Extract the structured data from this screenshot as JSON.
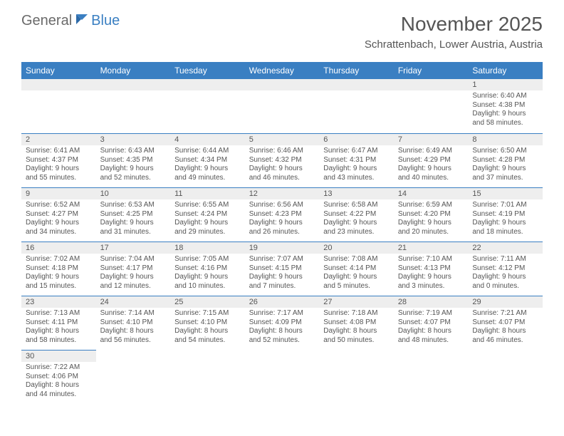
{
  "brand": {
    "part1": "General",
    "part2": "Blue"
  },
  "title": "November 2025",
  "location": "Schrattenbach, Lower Austria, Austria",
  "colors": {
    "header_bg": "#3a7fc2",
    "header_text": "#ffffff",
    "daynum_bg": "#eeeeee",
    "body_text": "#555555",
    "separator": "#3a7fc2",
    "page_bg": "#ffffff"
  },
  "typography": {
    "title_fontsize": 28,
    "location_fontsize": 15,
    "dayheader_fontsize": 12,
    "cell_fontsize": 10
  },
  "day_headers": [
    "Sunday",
    "Monday",
    "Tuesday",
    "Wednesday",
    "Thursday",
    "Friday",
    "Saturday"
  ],
  "weeks": [
    [
      null,
      null,
      null,
      null,
      null,
      null,
      {
        "n": "1",
        "sr": "Sunrise: 6:40 AM",
        "ss": "Sunset: 4:38 PM",
        "dl": "Daylight: 9 hours and 58 minutes."
      }
    ],
    [
      {
        "n": "2",
        "sr": "Sunrise: 6:41 AM",
        "ss": "Sunset: 4:37 PM",
        "dl": "Daylight: 9 hours and 55 minutes."
      },
      {
        "n": "3",
        "sr": "Sunrise: 6:43 AM",
        "ss": "Sunset: 4:35 PM",
        "dl": "Daylight: 9 hours and 52 minutes."
      },
      {
        "n": "4",
        "sr": "Sunrise: 6:44 AM",
        "ss": "Sunset: 4:34 PM",
        "dl": "Daylight: 9 hours and 49 minutes."
      },
      {
        "n": "5",
        "sr": "Sunrise: 6:46 AM",
        "ss": "Sunset: 4:32 PM",
        "dl": "Daylight: 9 hours and 46 minutes."
      },
      {
        "n": "6",
        "sr": "Sunrise: 6:47 AM",
        "ss": "Sunset: 4:31 PM",
        "dl": "Daylight: 9 hours and 43 minutes."
      },
      {
        "n": "7",
        "sr": "Sunrise: 6:49 AM",
        "ss": "Sunset: 4:29 PM",
        "dl": "Daylight: 9 hours and 40 minutes."
      },
      {
        "n": "8",
        "sr": "Sunrise: 6:50 AM",
        "ss": "Sunset: 4:28 PM",
        "dl": "Daylight: 9 hours and 37 minutes."
      }
    ],
    [
      {
        "n": "9",
        "sr": "Sunrise: 6:52 AM",
        "ss": "Sunset: 4:27 PM",
        "dl": "Daylight: 9 hours and 34 minutes."
      },
      {
        "n": "10",
        "sr": "Sunrise: 6:53 AM",
        "ss": "Sunset: 4:25 PM",
        "dl": "Daylight: 9 hours and 31 minutes."
      },
      {
        "n": "11",
        "sr": "Sunrise: 6:55 AM",
        "ss": "Sunset: 4:24 PM",
        "dl": "Daylight: 9 hours and 29 minutes."
      },
      {
        "n": "12",
        "sr": "Sunrise: 6:56 AM",
        "ss": "Sunset: 4:23 PM",
        "dl": "Daylight: 9 hours and 26 minutes."
      },
      {
        "n": "13",
        "sr": "Sunrise: 6:58 AM",
        "ss": "Sunset: 4:22 PM",
        "dl": "Daylight: 9 hours and 23 minutes."
      },
      {
        "n": "14",
        "sr": "Sunrise: 6:59 AM",
        "ss": "Sunset: 4:20 PM",
        "dl": "Daylight: 9 hours and 20 minutes."
      },
      {
        "n": "15",
        "sr": "Sunrise: 7:01 AM",
        "ss": "Sunset: 4:19 PM",
        "dl": "Daylight: 9 hours and 18 minutes."
      }
    ],
    [
      {
        "n": "16",
        "sr": "Sunrise: 7:02 AM",
        "ss": "Sunset: 4:18 PM",
        "dl": "Daylight: 9 hours and 15 minutes."
      },
      {
        "n": "17",
        "sr": "Sunrise: 7:04 AM",
        "ss": "Sunset: 4:17 PM",
        "dl": "Daylight: 9 hours and 12 minutes."
      },
      {
        "n": "18",
        "sr": "Sunrise: 7:05 AM",
        "ss": "Sunset: 4:16 PM",
        "dl": "Daylight: 9 hours and 10 minutes."
      },
      {
        "n": "19",
        "sr": "Sunrise: 7:07 AM",
        "ss": "Sunset: 4:15 PM",
        "dl": "Daylight: 9 hours and 7 minutes."
      },
      {
        "n": "20",
        "sr": "Sunrise: 7:08 AM",
        "ss": "Sunset: 4:14 PM",
        "dl": "Daylight: 9 hours and 5 minutes."
      },
      {
        "n": "21",
        "sr": "Sunrise: 7:10 AM",
        "ss": "Sunset: 4:13 PM",
        "dl": "Daylight: 9 hours and 3 minutes."
      },
      {
        "n": "22",
        "sr": "Sunrise: 7:11 AM",
        "ss": "Sunset: 4:12 PM",
        "dl": "Daylight: 9 hours and 0 minutes."
      }
    ],
    [
      {
        "n": "23",
        "sr": "Sunrise: 7:13 AM",
        "ss": "Sunset: 4:11 PM",
        "dl": "Daylight: 8 hours and 58 minutes."
      },
      {
        "n": "24",
        "sr": "Sunrise: 7:14 AM",
        "ss": "Sunset: 4:10 PM",
        "dl": "Daylight: 8 hours and 56 minutes."
      },
      {
        "n": "25",
        "sr": "Sunrise: 7:15 AM",
        "ss": "Sunset: 4:10 PM",
        "dl": "Daylight: 8 hours and 54 minutes."
      },
      {
        "n": "26",
        "sr": "Sunrise: 7:17 AM",
        "ss": "Sunset: 4:09 PM",
        "dl": "Daylight: 8 hours and 52 minutes."
      },
      {
        "n": "27",
        "sr": "Sunrise: 7:18 AM",
        "ss": "Sunset: 4:08 PM",
        "dl": "Daylight: 8 hours and 50 minutes."
      },
      {
        "n": "28",
        "sr": "Sunrise: 7:19 AM",
        "ss": "Sunset: 4:07 PM",
        "dl": "Daylight: 8 hours and 48 minutes."
      },
      {
        "n": "29",
        "sr": "Sunrise: 7:21 AM",
        "ss": "Sunset: 4:07 PM",
        "dl": "Daylight: 8 hours and 46 minutes."
      }
    ],
    [
      {
        "n": "30",
        "sr": "Sunrise: 7:22 AM",
        "ss": "Sunset: 4:06 PM",
        "dl": "Daylight: 8 hours and 44 minutes."
      },
      null,
      null,
      null,
      null,
      null,
      null
    ]
  ]
}
